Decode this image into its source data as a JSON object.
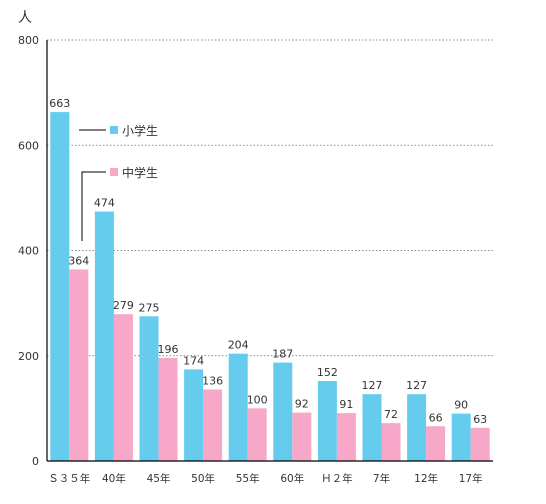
{
  "chart_data": {
    "type": "bar",
    "unit_label": "人",
    "categories": [
      "Ｓ３５年",
      "40年",
      "45年",
      "50年",
      "55年",
      "60年",
      "Ｈ２年",
      "7年",
      "12年",
      "17年"
    ],
    "series": [
      {
        "name": "小学生",
        "color": "#66CCEE",
        "values": [
          663,
          474,
          275,
          174,
          204,
          187,
          152,
          127,
          127,
          90
        ]
      },
      {
        "name": "中学生",
        "color": "#F7A8C8",
        "values": [
          364,
          279,
          196,
          136,
          100,
          92,
          91,
          72,
          66,
          63
        ]
      }
    ],
    "ylim": [
      0,
      800
    ],
    "yticks": [
      0,
      200,
      400,
      600,
      800
    ],
    "grid": true,
    "grid_style": "dotted",
    "legend_placement": "inside-top-left-with-leader-lines"
  }
}
